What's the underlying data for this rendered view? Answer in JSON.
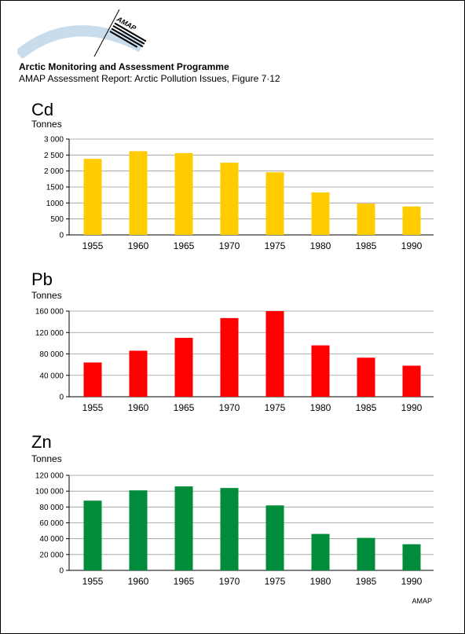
{
  "header": {
    "org": "Arctic Monitoring and Assessment Programme",
    "report": "AMAP Assessment Report: Arctic Pollution Issues, Figure 7·12",
    "logo_text": "AMAP"
  },
  "footer": {
    "credit": "AMAP"
  },
  "colors": {
    "cd": "#FFCC00",
    "pb": "#FF0000",
    "zn": "#008C3A",
    "grid": "#999999",
    "logo_arc": "#C8DCEB"
  },
  "chart_data": [
    {
      "type": "bar",
      "title": "Cd",
      "ylabel": "Tonnes",
      "categories": [
        "1955",
        "1960",
        "1965",
        "1970",
        "1975",
        "1980",
        "1985",
        "1990"
      ],
      "values": [
        2380,
        2620,
        2560,
        2260,
        1960,
        1330,
        980,
        890
      ],
      "ylim": [
        0,
        3000
      ],
      "yticks": [
        0,
        500,
        1000,
        1500,
        2000,
        2500,
        3000
      ],
      "ytick_labels": [
        "0",
        "500",
        "1000",
        "1500",
        "2 000",
        "2 500",
        "3 000"
      ],
      "color": "#FFCC00",
      "grid": true
    },
    {
      "type": "bar",
      "title": "Pb",
      "ylabel": "Tonnes",
      "categories": [
        "1955",
        "1960",
        "1965",
        "1970",
        "1975",
        "1980",
        "1985",
        "1990"
      ],
      "values": [
        64000,
        86000,
        110000,
        147000,
        160000,
        96000,
        73000,
        58000
      ],
      "ylim": [
        0,
        160000
      ],
      "yticks": [
        0,
        40000,
        80000,
        120000,
        160000
      ],
      "ytick_labels": [
        "0",
        "40 000",
        "80 000",
        "120 000",
        "160 000"
      ],
      "color": "#FF0000",
      "grid": true
    },
    {
      "type": "bar",
      "title": "Zn",
      "ylabel": "Tonnes",
      "categories": [
        "1955",
        "1960",
        "1965",
        "1970",
        "1975",
        "1980",
        "1985",
        "1990"
      ],
      "values": [
        88000,
        101000,
        106000,
        104000,
        82000,
        46000,
        41000,
        33000
      ],
      "ylim": [
        0,
        120000
      ],
      "yticks": [
        0,
        20000,
        40000,
        60000,
        80000,
        100000,
        120000
      ],
      "ytick_labels": [
        "0",
        "20 000",
        "40 000",
        "60 000",
        "80 000",
        "100 000",
        "120 000"
      ],
      "color": "#008C3A",
      "grid": true
    }
  ]
}
